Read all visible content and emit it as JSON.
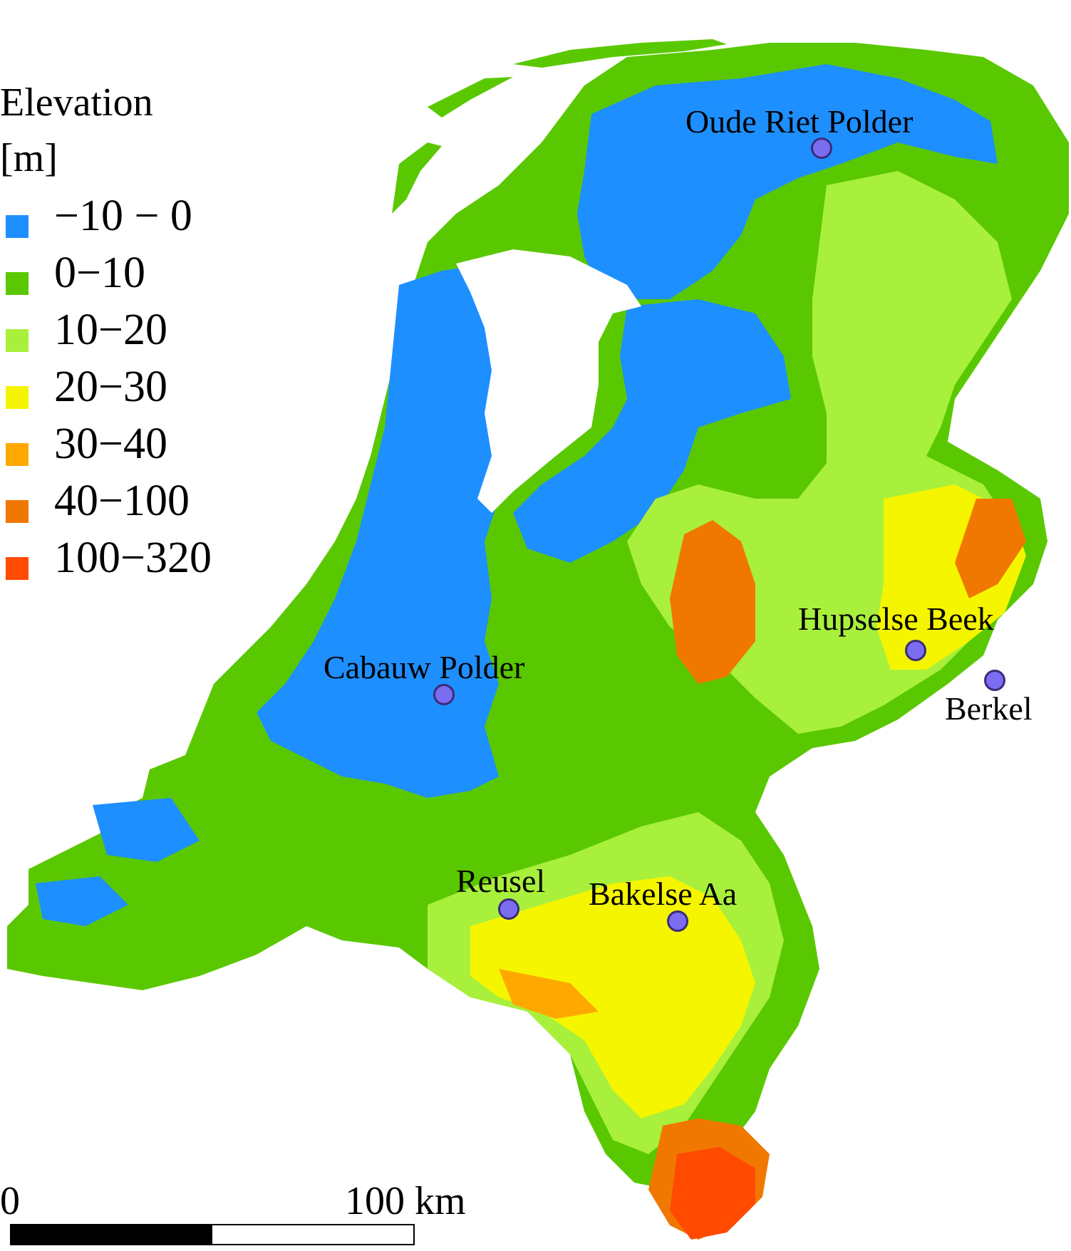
{
  "legend": {
    "title_line1": "Elevation",
    "title_line2": "[m]",
    "classes": [
      {
        "label": "−10 − 0",
        "color": "#1e8fff"
      },
      {
        "label": "0−10",
        "color": "#5ac800"
      },
      {
        "label": "10−20",
        "color": "#a8f03c"
      },
      {
        "label": "20−30",
        "color": "#f5f500"
      },
      {
        "label": "30−40",
        "color": "#ffa800"
      },
      {
        "label": "40−100",
        "color": "#f07800"
      },
      {
        "label": "100−320",
        "color": "#ff4a00"
      }
    ]
  },
  "sites": [
    {
      "name": "Oude Riet Polder"
    },
    {
      "name": "Hupselse Beek"
    },
    {
      "name": "Berkel"
    },
    {
      "name": "Cabauw Polder"
    },
    {
      "name": "Reusel"
    },
    {
      "name": "Bakelse Aa"
    }
  ],
  "site_marker_color": "#7b6cf0",
  "scale_bar": {
    "start_label": "0",
    "end_label": "100 km"
  }
}
